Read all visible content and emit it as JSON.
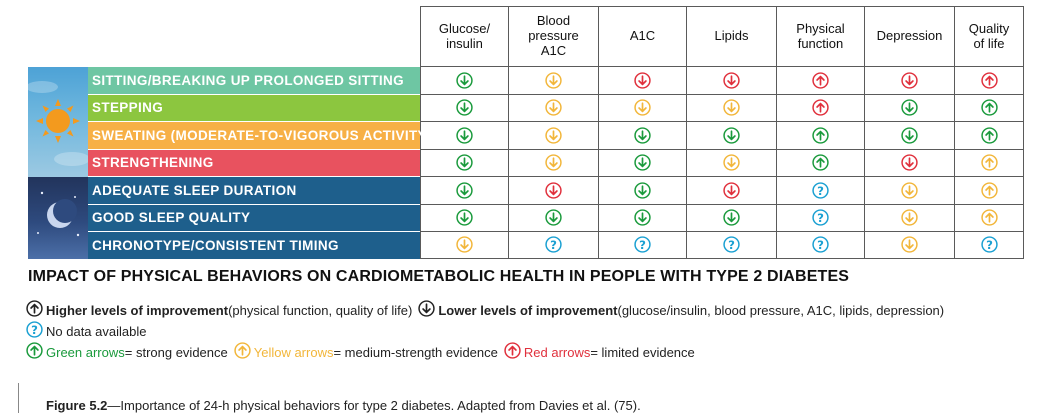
{
  "table": {
    "columns": [
      "Glucose/\ninsulin",
      "Blood\npressure\nA1C",
      "A1C",
      "Lipids",
      "Physical\nfunction",
      "Depression",
      "Quality\nof life"
    ],
    "rows": [
      {
        "label": "SITTING/BREAKING UP PROLONGED SITTING",
        "color": "#6ec6a3",
        "cells": [
          {
            "dir": "down",
            "evidence": "green"
          },
          {
            "dir": "down",
            "evidence": "yellow"
          },
          {
            "dir": "down",
            "evidence": "red"
          },
          {
            "dir": "down",
            "evidence": "red"
          },
          {
            "dir": "up",
            "evidence": "red"
          },
          {
            "dir": "down",
            "evidence": "red"
          },
          {
            "dir": "up",
            "evidence": "red"
          }
        ]
      },
      {
        "label": "STEPPING",
        "color": "#8cc63f",
        "cells": [
          {
            "dir": "down",
            "evidence": "green"
          },
          {
            "dir": "down",
            "evidence": "yellow"
          },
          {
            "dir": "down",
            "evidence": "yellow"
          },
          {
            "dir": "down",
            "evidence": "yellow"
          },
          {
            "dir": "up",
            "evidence": "red"
          },
          {
            "dir": "down",
            "evidence": "green"
          },
          {
            "dir": "up",
            "evidence": "green"
          }
        ]
      },
      {
        "label": "SWEATING (MODERATE-TO-VIGOROUS ACTIVITY)",
        "color": "#f7b046",
        "cells": [
          {
            "dir": "down",
            "evidence": "green"
          },
          {
            "dir": "down",
            "evidence": "yellow"
          },
          {
            "dir": "down",
            "evidence": "green"
          },
          {
            "dir": "down",
            "evidence": "green"
          },
          {
            "dir": "up",
            "evidence": "green"
          },
          {
            "dir": "down",
            "evidence": "green"
          },
          {
            "dir": "up",
            "evidence": "green"
          }
        ]
      },
      {
        "label": "STRENGTHENING",
        "color": "#e8525f",
        "cells": [
          {
            "dir": "down",
            "evidence": "green"
          },
          {
            "dir": "down",
            "evidence": "yellow"
          },
          {
            "dir": "down",
            "evidence": "green"
          },
          {
            "dir": "down",
            "evidence": "yellow"
          },
          {
            "dir": "up",
            "evidence": "green"
          },
          {
            "dir": "down",
            "evidence": "red"
          },
          {
            "dir": "up",
            "evidence": "yellow"
          }
        ]
      },
      {
        "label": "ADEQUATE SLEEP DURATION",
        "color": "#1e5f8c",
        "cells": [
          {
            "dir": "down",
            "evidence": "green"
          },
          {
            "dir": "down",
            "evidence": "red"
          },
          {
            "dir": "down",
            "evidence": "green"
          },
          {
            "dir": "down",
            "evidence": "red"
          },
          {
            "dir": "unknown",
            "evidence": "none"
          },
          {
            "dir": "down",
            "evidence": "yellow"
          },
          {
            "dir": "up",
            "evidence": "yellow"
          }
        ]
      },
      {
        "label": "GOOD SLEEP QUALITY",
        "color": "#1e5f8c",
        "cells": [
          {
            "dir": "down",
            "evidence": "green"
          },
          {
            "dir": "down",
            "evidence": "green"
          },
          {
            "dir": "down",
            "evidence": "green"
          },
          {
            "dir": "down",
            "evidence": "green"
          },
          {
            "dir": "unknown",
            "evidence": "none"
          },
          {
            "dir": "down",
            "evidence": "yellow"
          },
          {
            "dir": "up",
            "evidence": "yellow"
          }
        ]
      },
      {
        "label": "CHRONOTYPE/CONSISTENT TIMING",
        "color": "#1e5f8c",
        "cells": [
          {
            "dir": "down",
            "evidence": "yellow"
          },
          {
            "dir": "unknown",
            "evidence": "none"
          },
          {
            "dir": "unknown",
            "evidence": "none"
          },
          {
            "dir": "unknown",
            "evidence": "none"
          },
          {
            "dir": "unknown",
            "evidence": "none"
          },
          {
            "dir": "down",
            "evidence": "yellow"
          },
          {
            "dir": "unknown",
            "evidence": "none"
          }
        ]
      }
    ]
  },
  "title": "IMPACT OF PHYSICAL BEHAVIORS ON CARDIOMETABOLIC HEALTH IN PEOPLE WITH TYPE 2 DIABETES",
  "legend": {
    "up_bold": "Higher levels of improvement",
    "up_rest": " (physical function, quality of life)",
    "down_bold": "Lower levels of improvement",
    "down_rest": " (glucose/insulin, blood pressure, A1C, lipids, depression)",
    "no_data": "No data available",
    "green_label": "Green arrows",
    "green_rest": " = strong evidence",
    "yellow_label": "Yellow arrows",
    "yellow_rest": " = medium-strength evidence",
    "red_label": "Red arrows",
    "red_rest": " = limited evidence"
  },
  "caption": {
    "label": "Figure 5.2",
    "text": "—Importance of 24-h physical behaviors for type 2 diabetes. Adapted from Davies et al. (75)."
  },
  "icons": {
    "day": "sun-icon",
    "night": "moon-icon",
    "up": "arrow-up-circle-icon",
    "down": "arrow-down-circle-icon",
    "unknown": "question-circle-icon"
  },
  "colors": {
    "green": "#1a9a3c",
    "yellow": "#f2b63a",
    "red": "#e0303c",
    "none": "#1aa0d2",
    "black": "#222222"
  }
}
